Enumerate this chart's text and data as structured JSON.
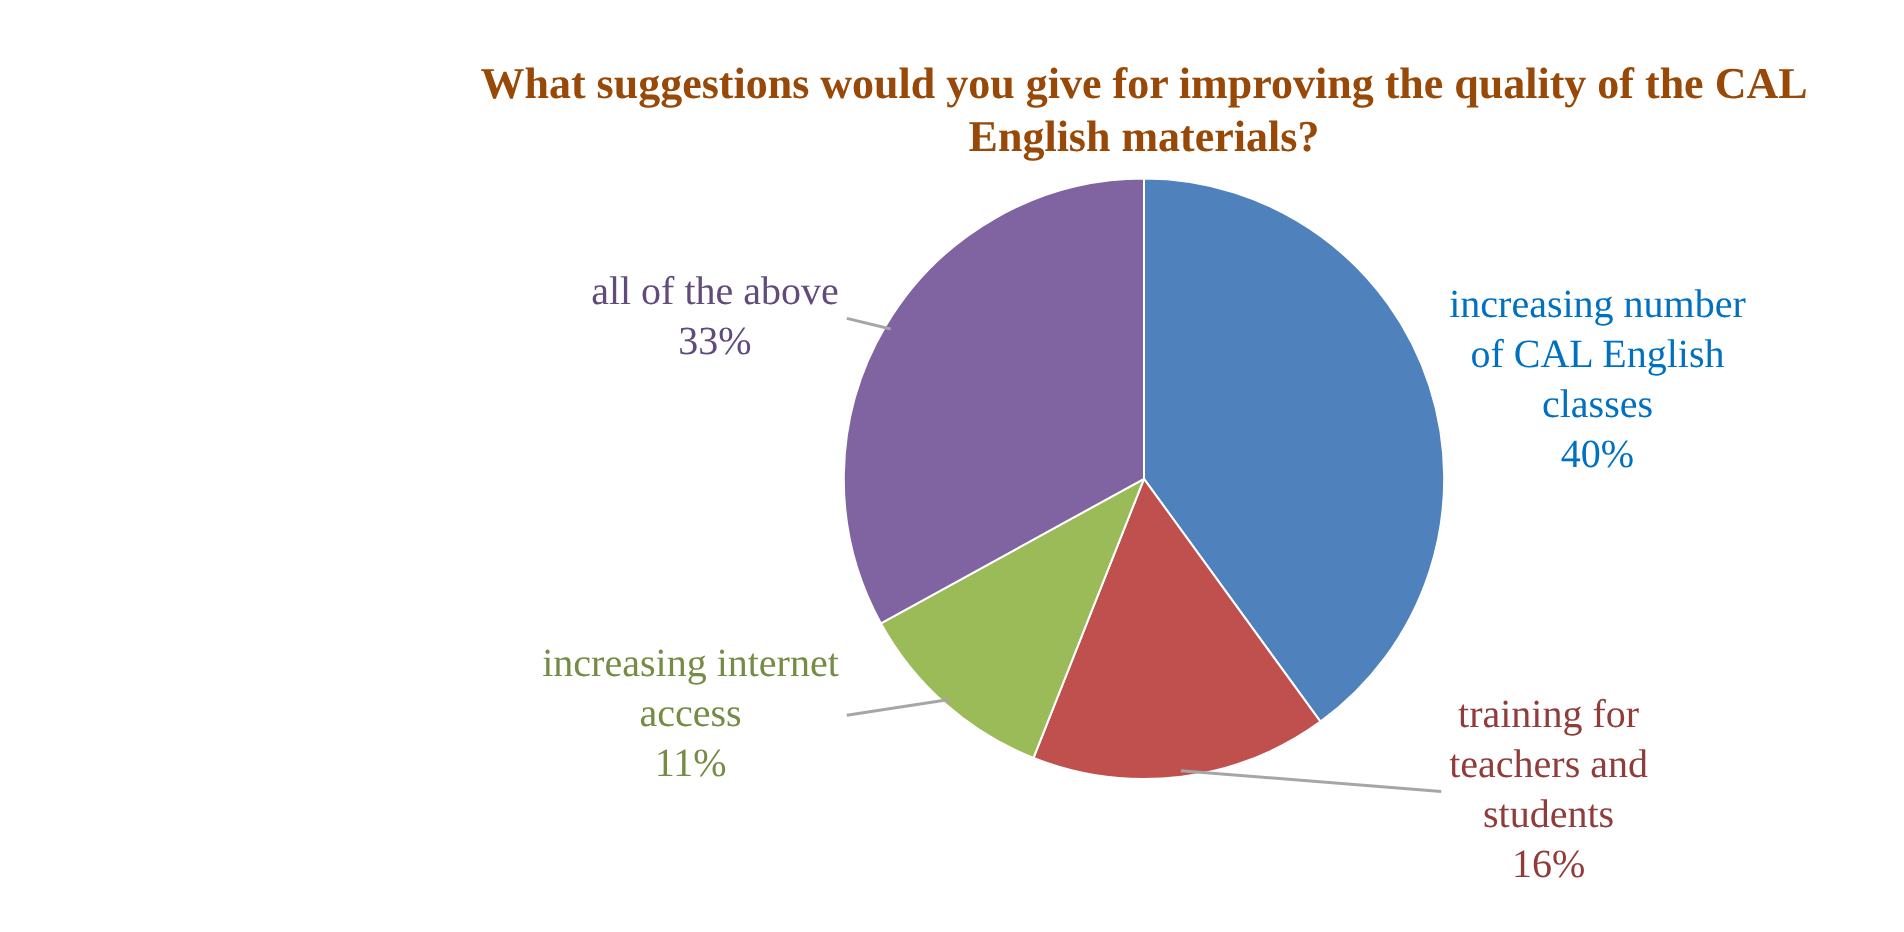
{
  "chart_data": {
    "type": "pie",
    "title": "What suggestions would you give for improving the quality of the CAL English materials?",
    "categories": [
      "increasing number of CAL English classes",
      "training for teachers and students",
      "increasing internet access",
      "all of the above"
    ],
    "values": [
      40,
      16,
      11,
      33
    ],
    "colors": [
      "#4f81bd",
      "#c0504d",
      "#9bbb59",
      "#8064a2"
    ],
    "value_labels": [
      "40%",
      "16%",
      "11%",
      "33%"
    ],
    "legend": false
  }
}
